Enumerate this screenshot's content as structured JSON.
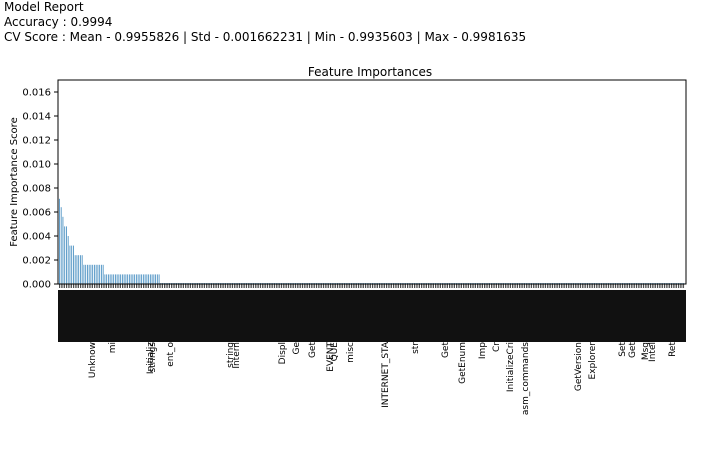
{
  "report": {
    "heading": "Model Report",
    "accuracy_line": "Accuracy : 0.9994",
    "cv_line": "CV Score : Mean - 0.9955826 | Std - 0.001662231 | Min - 0.9935603 | Max - 0.9981635"
  },
  "chart_data": {
    "type": "bar",
    "title": "Feature Importances",
    "xlabel": "",
    "ylabel": "Feature Importance Score",
    "ylim": [
      0,
      0.017
    ],
    "yticks": [
      0.0,
      0.002,
      0.004,
      0.006,
      0.008,
      0.01,
      0.012,
      0.014,
      0.016
    ],
    "ytick_labels": [
      "0.000",
      "0.002",
      "0.004",
      "0.006",
      "0.008",
      "0.010",
      "0.012",
      "0.014",
      "0.016"
    ],
    "bar_color": "#4a90c2",
    "visible_labels": [
      "Unknow",
      "mi",
      "Initializ",
      "ent_o",
      "strings",
      "string",
      "Intern",
      "Displ",
      "Ge",
      "Get",
      "EVENT",
      "QUE",
      "misc",
      "INTERNET_STA",
      "str",
      "Get",
      "GetEnum",
      "Imp",
      "Cr",
      "InitializeCri",
      "asm_commands",
      "GetVersion",
      "Explorer",
      "Set",
      "Get",
      "Msg",
      "Intel",
      "Ret"
    ],
    "values_nonzero": [
      0.0071,
      0.0064,
      0.0056,
      0.0048,
      0.0048,
      0.004,
      0.0032,
      0.0032,
      0.0032,
      0.0024,
      0.0024,
      0.0024,
      0.0024,
      0.0024,
      0.0016,
      0.0016,
      0.0016,
      0.0016,
      0.0016,
      0.0016,
      0.0016,
      0.0016,
      0.0016,
      0.0016,
      0.0016,
      0.0016,
      0.0008,
      0.0008,
      0.0008,
      0.0008,
      0.0008,
      0.0008,
      0.0008,
      0.0008,
      0.0008,
      0.0008,
      0.0008,
      0.0008,
      0.0008,
      0.0008,
      0.0008,
      0.0008,
      0.0008,
      0.0008,
      0.0008,
      0.0008,
      0.0008,
      0.0008,
      0.0008,
      0.0008,
      0.0008,
      0.0008,
      0.0008,
      0.0008,
      0.0008,
      0.0008,
      0.0008,
      0.0008
    ],
    "zero_bar_count": 300,
    "grid": false
  }
}
